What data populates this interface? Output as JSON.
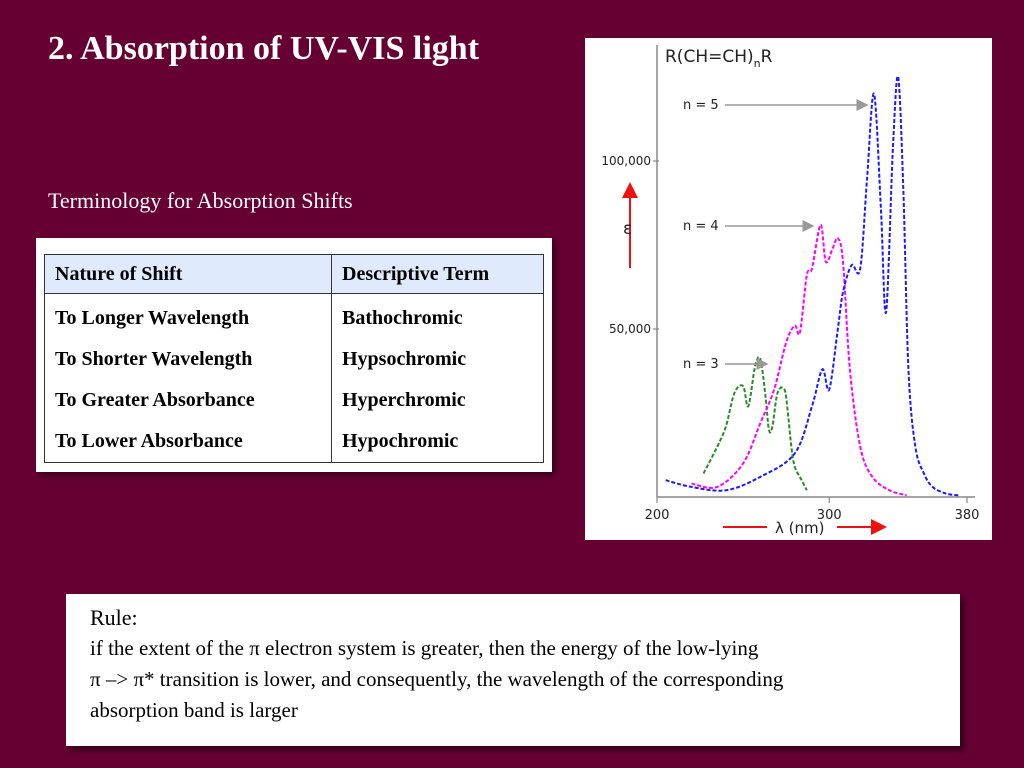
{
  "slide": {
    "title": "2. Absorption of UV-VIS light",
    "subtitle": "Terminology for Absorption Shifts"
  },
  "table": {
    "headers": [
      "Nature of Shift",
      "Descriptive Term"
    ],
    "rows": [
      [
        "To Longer Wavelength",
        "Bathochromic"
      ],
      [
        "To Shorter Wavelength",
        "Hypsochromic"
      ],
      [
        "To Greater Absorbance",
        "Hyperchromic"
      ],
      [
        "To Lower Absorbance",
        "Hypochromic"
      ]
    ]
  },
  "chart_data": {
    "type": "line",
    "title": "R(CH=CH)nR",
    "xlabel": "λ (nm)",
    "ylabel": "ε",
    "xlim": [
      200,
      380
    ],
    "ylim": [
      0,
      125000
    ],
    "x_ticks": [
      "200",
      "300",
      "380"
    ],
    "y_ticks": [
      "50,000",
      "100,000"
    ],
    "grid": false,
    "series": [
      {
        "name": "n = 3",
        "color": "#2a8a2a",
        "x": [
          227,
          235,
          240,
          245,
          250,
          253,
          257,
          260,
          263,
          265,
          267,
          270,
          274,
          276,
          278,
          280,
          284,
          287
        ],
        "y": [
          7000,
          15000,
          21000,
          31000,
          33000,
          27000,
          39000,
          41000,
          30000,
          20000,
          21000,
          31000,
          32000,
          25000,
          15000,
          9000,
          5000,
          2000
        ]
      },
      {
        "name": "n = 4",
        "color": "#ff00ff",
        "x": [
          220,
          235,
          250,
          260,
          268,
          275,
          280,
          283,
          287,
          290,
          295,
          298,
          302,
          305,
          308,
          312,
          318,
          325,
          335,
          345
        ],
        "y": [
          4000,
          3000,
          10000,
          22000,
          32000,
          46000,
          51000,
          49000,
          66000,
          68000,
          81000,
          70000,
          74000,
          77000,
          70000,
          38000,
          15000,
          6000,
          2000,
          500
        ]
      },
      {
        "name": "n = 5",
        "color": "#1a1aff",
        "x": [
          205,
          220,
          240,
          260,
          280,
          290,
          296,
          300,
          305,
          308,
          313,
          318,
          322,
          326,
          330,
          333,
          337,
          340,
          343,
          346,
          350,
          355,
          360,
          368,
          375
        ],
        "y": [
          5000,
          3000,
          2000,
          6000,
          13000,
          27000,
          38000,
          32000,
          50000,
          61000,
          69000,
          68000,
          95000,
          120000,
          86000,
          55000,
          104000,
          125000,
          92000,
          38000,
          15000,
          7000,
          3000,
          1000,
          500
        ]
      }
    ]
  },
  "rule": {
    "heading": "Rule:",
    "line1": "if the extent of the π electron system is greater, then the energy of the low-lying",
    "line2": "π –> π* transition is lower, and consequently, the wavelength of the corresponding",
    "line3": "absorption band is  larger"
  }
}
